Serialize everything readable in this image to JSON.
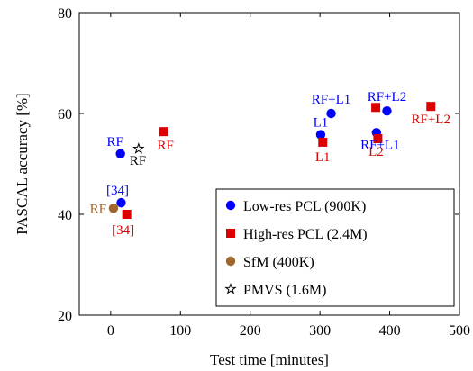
{
  "chart_data": {
    "type": "scatter",
    "xlabel": "Test time [minutes]",
    "ylabel": "PASCAL accuracy [%]",
    "xlim": [
      -45,
      500
    ],
    "ylim": [
      20,
      80
    ],
    "xticks": [
      0,
      100,
      200,
      300,
      400,
      500
    ],
    "yticks": [
      20,
      40,
      60,
      80
    ],
    "grid": false,
    "legend_position": "bottom-right",
    "series": [
      {
        "name": "Low-res PCL (900K)",
        "color": "#0000ff",
        "marker": "circle",
        "points": [
          {
            "x": 14,
            "y": 52.0,
            "label": "RF"
          },
          {
            "x": 15,
            "y": 42.3,
            "label": "[34]"
          },
          {
            "x": 301,
            "y": 55.8,
            "label": "L1"
          },
          {
            "x": 316,
            "y": 60.0,
            "label": "RF+L1"
          },
          {
            "x": 381,
            "y": 56.2,
            "label": "RF+L1"
          },
          {
            "x": 396,
            "y": 60.5,
            "label": "RF+L2"
          }
        ]
      },
      {
        "name": "High-res PCL (2.4M)",
        "color": "#dd0000",
        "marker": "square",
        "points": [
          {
            "x": 76,
            "y": 56.4,
            "label": "RF"
          },
          {
            "x": 23,
            "y": 40.0,
            "label": "[34]"
          },
          {
            "x": 304,
            "y": 54.3,
            "label": "L1"
          },
          {
            "x": 380,
            "y": 61.2,
            "label": ""
          },
          {
            "x": 383,
            "y": 55.0,
            "label": "L2"
          },
          {
            "x": 459,
            "y": 61.4,
            "label": "RF+L2"
          }
        ]
      },
      {
        "name": "SfM (400K)",
        "color": "#a0652d",
        "marker": "circle",
        "points": [
          {
            "x": 4,
            "y": 41.2,
            "label": "RF"
          }
        ]
      },
      {
        "name": "PMVS (1.6M)",
        "color": "#000000",
        "marker": "star",
        "points": [
          {
            "x": 40,
            "y": 53.0,
            "label": "RF"
          }
        ]
      }
    ]
  }
}
